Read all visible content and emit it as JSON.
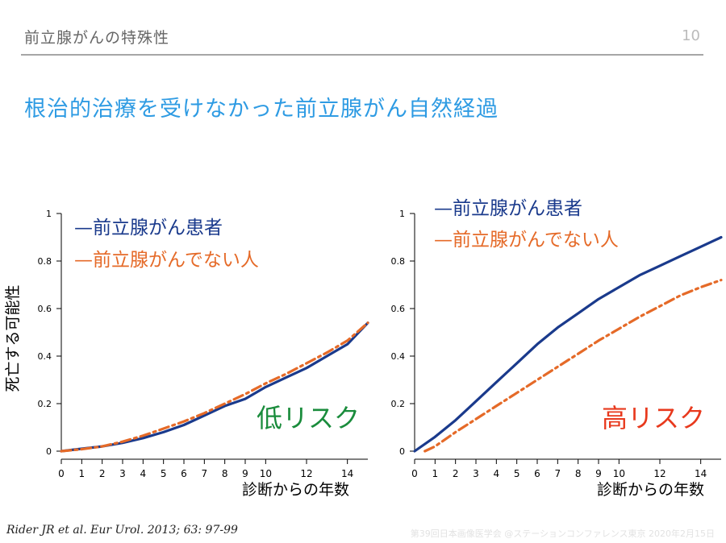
{
  "header": {
    "section_title": "前立腺がんの特殊性",
    "page_number": "10"
  },
  "slide_title": "根治的治療を受けなかった前立腺がん自然経過",
  "colors": {
    "patient": "#1a3a8c",
    "non_patient": "#e56a28",
    "low_risk": "#1a8c3c",
    "high_risk": "#e8391d",
    "title": "#2e9be3"
  },
  "chart_data": [
    {
      "type": "line",
      "ylabel": "死亡する可能性",
      "xlabel": "診断からの年数",
      "annotation": "低リスク",
      "xlim": [
        0,
        15
      ],
      "ylim": [
        0,
        1
      ],
      "x_ticks": [
        "0",
        "1",
        "2",
        "3",
        "4",
        "5",
        "6",
        "7",
        "8",
        "9",
        "10",
        "12",
        "14"
      ],
      "y_ticks": [
        "0",
        "0.2",
        "0.4",
        "0.6",
        "0.8",
        "1"
      ],
      "grid": false,
      "legend_position": "top-left",
      "series": [
        {
          "name": "前立腺がん患者",
          "style": "solid",
          "x": [
            0,
            1,
            2,
            3,
            4,
            5,
            6,
            7,
            8,
            9,
            10,
            11,
            12,
            13,
            14,
            15
          ],
          "y": [
            0,
            0.01,
            0.02,
            0.035,
            0.055,
            0.08,
            0.11,
            0.15,
            0.19,
            0.22,
            0.27,
            0.31,
            0.35,
            0.4,
            0.45,
            0.54
          ]
        },
        {
          "name": "前立腺がんでない人",
          "style": "dashdot",
          "x": [
            0,
            1,
            2,
            3,
            4,
            5,
            6,
            7,
            8,
            9,
            10,
            11,
            12,
            13,
            14,
            15
          ],
          "y": [
            0,
            0.008,
            0.02,
            0.04,
            0.065,
            0.095,
            0.125,
            0.16,
            0.2,
            0.24,
            0.285,
            0.325,
            0.37,
            0.415,
            0.465,
            0.54
          ]
        }
      ]
    },
    {
      "type": "line",
      "xlabel": "診断からの年数",
      "annotation": "高リスク",
      "xlim": [
        0,
        15
      ],
      "ylim": [
        0,
        1
      ],
      "x_ticks": [
        "0",
        "1",
        "2",
        "3",
        "4",
        "5",
        "6",
        "7",
        "8",
        "9",
        "10",
        "12",
        "14"
      ],
      "y_ticks": [
        "0",
        "0.2",
        "0.4",
        "0.6",
        "0.8",
        "1"
      ],
      "grid": false,
      "legend_position": "top-left",
      "series": [
        {
          "name": "前立腺がん患者",
          "style": "solid",
          "x": [
            0,
            1,
            2,
            3,
            4,
            5,
            6,
            7,
            8,
            9,
            10,
            11,
            12,
            13,
            14,
            15
          ],
          "y": [
            0,
            0.06,
            0.13,
            0.21,
            0.29,
            0.37,
            0.45,
            0.52,
            0.58,
            0.64,
            0.69,
            0.74,
            0.78,
            0.82,
            0.86,
            0.9
          ]
        },
        {
          "name": "前立腺がんでない人",
          "style": "dashdot",
          "x": [
            0.5,
            1,
            2,
            3,
            4,
            5,
            6,
            7,
            8,
            9,
            10,
            11,
            12,
            13,
            14,
            15
          ],
          "y": [
            0,
            0.02,
            0.08,
            0.135,
            0.19,
            0.245,
            0.3,
            0.355,
            0.41,
            0.465,
            0.515,
            0.565,
            0.61,
            0.655,
            0.69,
            0.72
          ]
        }
      ]
    }
  ],
  "citation": "Rider JR et al. Eur Urol. 2013; 63: 97-99",
  "footer": "第39回日本画像医学会 @ステーションコンファレンス東京 2020年2月15日"
}
